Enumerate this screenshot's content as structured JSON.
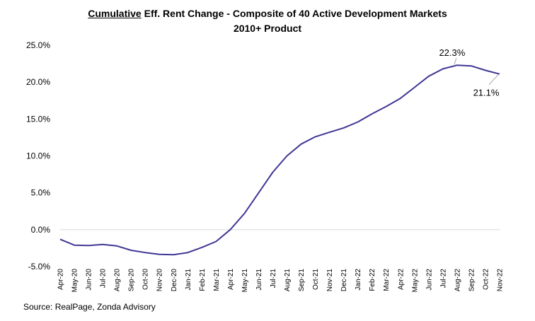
{
  "chart_data": {
    "type": "line",
    "title_underlined": "Cumulative",
    "title_rest": " Eff. Rent Change - Composite of 40 Active Development Markets",
    "subtitle": "2010+ Product",
    "categories": [
      "Apr-20",
      "May-20",
      "Jun-20",
      "Jul-20",
      "Aug-20",
      "Sep-20",
      "Oct-20",
      "Nov-20",
      "Dec-20",
      "Jan-21",
      "Feb-21",
      "Mar-21",
      "Apr-21",
      "May-21",
      "Jun-21",
      "Jul-21",
      "Aug-21",
      "Sep-21",
      "Oct-21",
      "Nov-21",
      "Dec-21",
      "Jan-22",
      "Feb-22",
      "Mar-22",
      "Apr-22",
      "May-22",
      "Jun-22",
      "Jul-22",
      "Aug-22",
      "Sep-22",
      "Oct-22",
      "Nov-22"
    ],
    "values": [
      -1.3,
      -2.1,
      -2.15,
      -2.0,
      -2.2,
      -2.8,
      -3.1,
      -3.35,
      -3.4,
      -3.1,
      -2.4,
      -1.6,
      0.0,
      2.2,
      5.0,
      7.8,
      10.0,
      11.6,
      12.6,
      13.2,
      13.8,
      14.6,
      15.7,
      16.7,
      17.8,
      19.3,
      20.8,
      21.8,
      22.3,
      22.2,
      21.6,
      21.1
    ],
    "ylim": [
      -5,
      25
    ],
    "yticks": [
      -5,
      0,
      5,
      10,
      15,
      20,
      25
    ],
    "ytick_labels": [
      "-5.0%",
      "0.0%",
      "5.0%",
      "10.0%",
      "15.0%",
      "20.0%",
      "25.0%"
    ],
    "line_color": "#3f3794",
    "grid": false,
    "annotations": [
      {
        "label": "22.3%",
        "index": 28
      },
      {
        "label": "21.1%",
        "index": 31
      }
    ]
  },
  "source": "Source: RealPage, Zonda Advisory"
}
